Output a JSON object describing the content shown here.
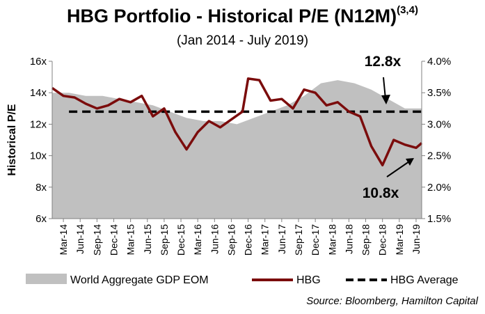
{
  "chart_data": {
    "type": "line",
    "title_main": "HBG Portfolio - Historical P/E (N12M)",
    "title_sup": "(3,4)",
    "subtitle": "(Jan 2014 - July 2019)",
    "ylabel": "Historical P/E",
    "ylim": [
      6,
      16
    ],
    "y2lim": [
      1.5,
      4.0
    ],
    "y_ticks": [
      "6x",
      "8x",
      "10x",
      "12x",
      "14x",
      "16x"
    ],
    "y2_ticks": [
      "1.5%",
      "2.0%",
      "2.5%",
      "3.0%",
      "3.5%",
      "4.0%"
    ],
    "x_tick_labels": [
      "Mar-14",
      "Jun-14",
      "Sep-14",
      "Dec-14",
      "Mar-15",
      "Jun-15",
      "Sep-15",
      "Dec-15",
      "Mar-16",
      "Jun-16",
      "Sep-16",
      "Dec-16",
      "Mar-17",
      "Jun-17",
      "Sep-17",
      "Dec-17",
      "Mar-18",
      "Jun-18",
      "Sep-18",
      "Dec-18",
      "Mar-19",
      "Jun-19"
    ],
    "x_start": "2014-01",
    "x_end": "2019-07",
    "grid": false,
    "legend_position": "bottom",
    "series": [
      {
        "name": "World Aggregate GDP EOM",
        "type": "area",
        "axis": "right",
        "color": "#c0c0c0",
        "x": [
          "2014-01",
          "2014-04",
          "2014-07",
          "2014-10",
          "2015-01",
          "2015-04",
          "2015-07",
          "2015-10",
          "2016-01",
          "2016-04",
          "2016-07",
          "2016-10",
          "2017-01",
          "2017-04",
          "2017-07",
          "2017-10",
          "2018-01",
          "2018-04",
          "2018-07",
          "2018-10",
          "2019-01",
          "2019-04",
          "2019-07"
        ],
        "values": [
          3.5,
          3.5,
          3.45,
          3.45,
          3.4,
          3.35,
          3.3,
          3.2,
          3.1,
          3.05,
          3.05,
          3.0,
          3.1,
          3.2,
          3.3,
          3.45,
          3.65,
          3.7,
          3.65,
          3.55,
          3.4,
          3.25,
          3.25
        ]
      },
      {
        "name": "HBG",
        "type": "line",
        "axis": "left",
        "color": "#7b0c0c",
        "x": [
          "2014-01",
          "2014-03",
          "2014-05",
          "2014-07",
          "2014-09",
          "2014-11",
          "2015-01",
          "2015-03",
          "2015-05",
          "2015-07",
          "2015-09",
          "2015-11",
          "2016-01",
          "2016-03",
          "2016-05",
          "2016-07",
          "2016-09",
          "2016-11",
          "2016-12",
          "2017-02",
          "2017-04",
          "2017-06",
          "2017-08",
          "2017-10",
          "2017-12",
          "2018-02",
          "2018-04",
          "2018-06",
          "2018-08",
          "2018-10",
          "2018-12",
          "2019-02",
          "2019-04",
          "2019-06",
          "2019-07"
        ],
        "values": [
          14.3,
          13.8,
          13.7,
          13.3,
          13.0,
          13.2,
          13.6,
          13.4,
          13.8,
          12.5,
          13.0,
          11.5,
          10.4,
          11.5,
          12.2,
          11.8,
          12.3,
          12.8,
          14.9,
          14.8,
          13.5,
          13.6,
          13.0,
          14.2,
          14.0,
          13.2,
          13.4,
          12.8,
          12.5,
          10.6,
          9.4,
          11.0,
          10.7,
          10.5,
          10.8
        ]
      },
      {
        "name": "HBG Average",
        "type": "dashed",
        "axis": "left",
        "color": "#000000",
        "x_range": [
          "2014-04",
          "2019-07"
        ],
        "value": 12.8
      }
    ],
    "annotations": [
      {
        "text": "12.8x"
      },
      {
        "text": "10.8x"
      }
    ]
  },
  "source_text": "Source: Bloomberg, Hamilton Capital"
}
